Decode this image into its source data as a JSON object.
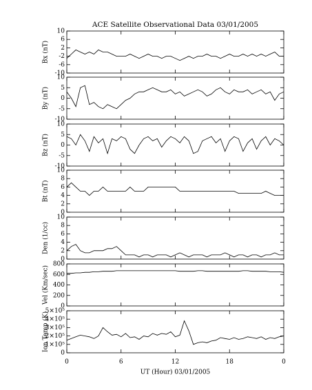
{
  "chart_data": [
    {
      "type": "line",
      "title": "ACE Satellite Observational Data   03/01/2005",
      "ylabel": "Bx (nT)",
      "color": "#000000",
      "x": [
        0,
        0.5,
        1,
        1.5,
        2,
        2.5,
        3,
        3.5,
        4,
        4.5,
        5,
        5.5,
        6,
        6.5,
        7,
        7.5,
        8,
        8.5,
        9,
        9.5,
        10,
        10.5,
        11,
        11.5,
        12,
        12.5,
        13,
        13.5,
        14,
        14.5,
        15,
        15.5,
        16,
        16.5,
        17,
        17.5,
        18,
        18.5,
        19,
        19.5,
        20,
        20.5,
        21,
        21.5,
        22,
        22.5,
        23,
        23.5,
        24
      ],
      "values": [
        -3,
        -1,
        1,
        0,
        -1,
        0,
        -1,
        1,
        0,
        0,
        -1,
        -2,
        -2,
        -2,
        -1,
        -2,
        -3,
        -2,
        -1,
        -2,
        -2,
        -3,
        -2,
        -2,
        -3,
        -4,
        -3,
        -2,
        -3,
        -2,
        -2,
        -1,
        -2,
        -2,
        -3,
        -2,
        -1,
        -2,
        -2,
        -1,
        -2,
        -1,
        -2,
        -1,
        -2,
        -1,
        0,
        -2,
        -2
      ],
      "xlim": [
        0,
        24
      ],
      "xticks": [
        0,
        6,
        12,
        18,
        {
          "value": 24,
          "label": "0"
        }
      ],
      "ylim": [
        -10,
        10
      ],
      "yticks": [
        -10,
        -6,
        -2,
        2,
        6,
        10
      ]
    },
    {
      "type": "line",
      "ylabel": "By (nT)",
      "color": "#000000",
      "x": [
        0,
        0.5,
        1,
        1.5,
        2,
        2.5,
        3,
        3.5,
        4,
        4.5,
        5,
        5.5,
        6,
        6.5,
        7,
        7.5,
        8,
        8.5,
        9,
        9.5,
        10,
        10.5,
        11,
        11.5,
        12,
        12.5,
        13,
        13.5,
        14,
        14.5,
        15,
        15.5,
        16,
        16.5,
        17,
        17.5,
        18,
        18.5,
        19,
        19.5,
        20,
        20.5,
        21,
        21.5,
        22,
        22.5,
        23,
        23.5,
        24
      ],
      "values": [
        3,
        0,
        -4,
        5,
        6,
        -3,
        -2,
        -4,
        -5,
        -3,
        -4,
        -5,
        -3,
        -1,
        0,
        2,
        3,
        3,
        4,
        5,
        4,
        3,
        3,
        4,
        2,
        3,
        1,
        2,
        3,
        4,
        3,
        1,
        2,
        4,
        5,
        3,
        2,
        4,
        3,
        3,
        4,
        2,
        3,
        4,
        2,
        3,
        -1,
        2,
        3
      ],
      "xlim": [
        0,
        24
      ],
      "xticks": [
        0,
        6,
        12,
        18,
        {
          "value": 24,
          "label": "0"
        }
      ],
      "ylim": [
        -10,
        10
      ],
      "yticks": [
        -10,
        -5,
        0,
        5,
        10
      ]
    },
    {
      "type": "line",
      "ylabel": "Bz (nT)",
      "color": "#000000",
      "x": [
        0,
        0.5,
        1,
        1.5,
        2,
        2.5,
        3,
        3.5,
        4,
        4.5,
        5,
        5.5,
        6,
        6.5,
        7,
        7.5,
        8,
        8.5,
        9,
        9.5,
        10,
        10.5,
        11,
        11.5,
        12,
        12.5,
        13,
        13.5,
        14,
        14.5,
        15,
        15.5,
        16,
        16.5,
        17,
        17.5,
        18,
        18.5,
        19,
        19.5,
        20,
        20.5,
        21,
        21.5,
        22,
        22.5,
        23,
        23.5,
        24
      ],
      "values": [
        4,
        3,
        0,
        5,
        2,
        -3,
        4,
        1,
        3,
        -4,
        3,
        2,
        4,
        3,
        -2,
        -4,
        0,
        3,
        4,
        2,
        3,
        -1,
        2,
        4,
        3,
        1,
        4,
        2,
        -4,
        -3,
        2,
        3,
        4,
        1,
        3,
        -3,
        2,
        4,
        3,
        -3,
        1,
        3,
        -2,
        2,
        4,
        0,
        3,
        2,
        0
      ],
      "xlim": [
        0,
        24
      ],
      "xticks": [
        0,
        6,
        12,
        18,
        {
          "value": 24,
          "label": "0"
        }
      ],
      "ylim": [
        -10,
        10
      ],
      "yticks": [
        -10,
        -5,
        0,
        5,
        10
      ]
    },
    {
      "type": "line",
      "ylabel": "Bt (nT)",
      "color": "#000000",
      "x": [
        0,
        0.5,
        1,
        1.5,
        2,
        2.5,
        3,
        3.5,
        4,
        4.5,
        5,
        5.5,
        6,
        6.5,
        7,
        7.5,
        8,
        8.5,
        9,
        9.5,
        10,
        10.5,
        11,
        11.5,
        12,
        12.5,
        13,
        13.5,
        14,
        14.5,
        15,
        15.5,
        16,
        16.5,
        17,
        17.5,
        18,
        18.5,
        19,
        19.5,
        20,
        20.5,
        21,
        21.5,
        22,
        22.5,
        23,
        23.5,
        24
      ],
      "values": [
        6,
        7,
        6,
        5,
        5,
        4,
        5,
        5,
        6,
        5,
        5,
        5,
        5,
        5,
        6,
        5,
        5,
        5,
        6,
        6,
        6,
        6,
        6,
        6,
        6,
        5,
        5,
        5,
        5,
        5,
        5,
        5,
        5,
        5,
        5,
        5,
        5,
        5,
        4.5,
        4.5,
        4.5,
        4.5,
        4.5,
        4.5,
        5,
        4.5,
        4,
        4,
        4
      ],
      "xlim": [
        0,
        24
      ],
      "xticks": [
        0,
        6,
        12,
        18,
        {
          "value": 24,
          "label": "0"
        }
      ],
      "ylim": [
        0,
        10
      ],
      "yticks": [
        0,
        2,
        4,
        6,
        8,
        10
      ]
    },
    {
      "type": "line",
      "ylabel": "Den (1/cc)",
      "color": "#000000",
      "x": [
        0,
        0.5,
        1,
        1.5,
        2,
        2.5,
        3,
        3.5,
        4,
        4.5,
        5,
        5.5,
        6,
        6.5,
        7,
        7.5,
        8,
        8.5,
        9,
        9.5,
        10,
        10.5,
        11,
        11.5,
        12,
        12.5,
        13,
        13.5,
        14,
        14.5,
        15,
        15.5,
        16,
        16.5,
        17,
        17.5,
        18,
        18.5,
        19,
        19.5,
        20,
        20.5,
        21,
        21.5,
        22,
        22.5,
        23,
        23.5,
        24
      ],
      "values": [
        2,
        3,
        3.5,
        2,
        1.5,
        1.5,
        2,
        2,
        2,
        2.5,
        2.5,
        3,
        2,
        1,
        1,
        1,
        0.5,
        1,
        1,
        0.5,
        1,
        1,
        1,
        0.5,
        1,
        1.5,
        1,
        0.5,
        1,
        1,
        1,
        0.5,
        1,
        1,
        1,
        1.5,
        1,
        0.5,
        1,
        1,
        0.5,
        1,
        1,
        0.5,
        1,
        1,
        1.5,
        1,
        1
      ],
      "xlim": [
        0,
        24
      ],
      "xticks": [
        0,
        6,
        12,
        18,
        {
          "value": 24,
          "label": "0"
        }
      ],
      "ylim": [
        0,
        10
      ],
      "yticks": [
        0,
        2,
        4,
        6,
        8,
        10
      ]
    },
    {
      "type": "line",
      "ylabel": "Vel (Km/sec)",
      "color": "#000000",
      "x": [
        0,
        0.5,
        1,
        1.5,
        2,
        2.5,
        3,
        3.5,
        4,
        4.5,
        5,
        5.5,
        6,
        6.5,
        7,
        7.5,
        8,
        8.5,
        9,
        9.5,
        10,
        10.5,
        11,
        11.5,
        12,
        12.5,
        13,
        13.5,
        14,
        14.5,
        15,
        15.5,
        16,
        16.5,
        17,
        17.5,
        18,
        18.5,
        19,
        19.5,
        20,
        20.5,
        21,
        21.5,
        22,
        22.5,
        23,
        23.5,
        24
      ],
      "values": [
        620,
        620,
        630,
        630,
        640,
        640,
        650,
        650,
        660,
        660,
        660,
        670,
        670,
        670,
        670,
        670,
        670,
        670,
        670,
        670,
        670,
        670,
        670,
        670,
        670,
        660,
        660,
        660,
        660,
        670,
        670,
        660,
        660,
        660,
        660,
        660,
        660,
        660,
        660,
        670,
        670,
        660,
        660,
        660,
        660,
        650,
        650,
        650,
        640
      ],
      "xlim": [
        0,
        24
      ],
      "xticks": [
        0,
        6,
        12,
        18,
        {
          "value": 24,
          "label": "0"
        }
      ],
      "ylim": [
        0,
        800
      ],
      "yticks": [
        0,
        200,
        400,
        600,
        800
      ]
    },
    {
      "type": "line",
      "ylabel": "Ion Temp (K)",
      "xlabel": "UT (Hour)  03/01/2005",
      "color": "#000000",
      "x": [
        0,
        0.5,
        1,
        1.5,
        2,
        2.5,
        3,
        3.5,
        4,
        4.5,
        5,
        5.5,
        6,
        6.5,
        7,
        7.5,
        8,
        8.5,
        9,
        9.5,
        10,
        10.5,
        11,
        11.5,
        12,
        12.5,
        13,
        13.5,
        14,
        14.5,
        15,
        15.5,
        16,
        16.5,
        17,
        17.5,
        18,
        18.5,
        19,
        19.5,
        20,
        20.5,
        21,
        21.5,
        22,
        22.5,
        23,
        23.5,
        24
      ],
      "values": [
        150000,
        170000,
        190000,
        210000,
        200000,
        190000,
        170000,
        200000,
        300000,
        250000,
        210000,
        220000,
        190000,
        230000,
        180000,
        190000,
        160000,
        200000,
        190000,
        230000,
        210000,
        230000,
        220000,
        250000,
        190000,
        210000,
        380000,
        260000,
        100000,
        120000,
        130000,
        120000,
        140000,
        150000,
        180000,
        170000,
        160000,
        180000,
        160000,
        170000,
        190000,
        180000,
        170000,
        190000,
        160000,
        180000,
        170000,
        190000,
        200000
      ],
      "xlim": [
        0,
        24
      ],
      "xticks": [
        0,
        6,
        12,
        18,
        {
          "value": 24,
          "label": "0"
        }
      ],
      "ylim": [
        0,
        500000
      ],
      "yticks": [
        0,
        {
          "value": 100000,
          "label": "1×10⁵"
        },
        {
          "value": 200000,
          "label": "2×10⁵"
        },
        {
          "value": 300000,
          "label": "3×10⁵"
        },
        {
          "value": 400000,
          "label": "4×10⁵"
        },
        {
          "value": 500000,
          "label": "5×10⁵"
        }
      ]
    }
  ]
}
